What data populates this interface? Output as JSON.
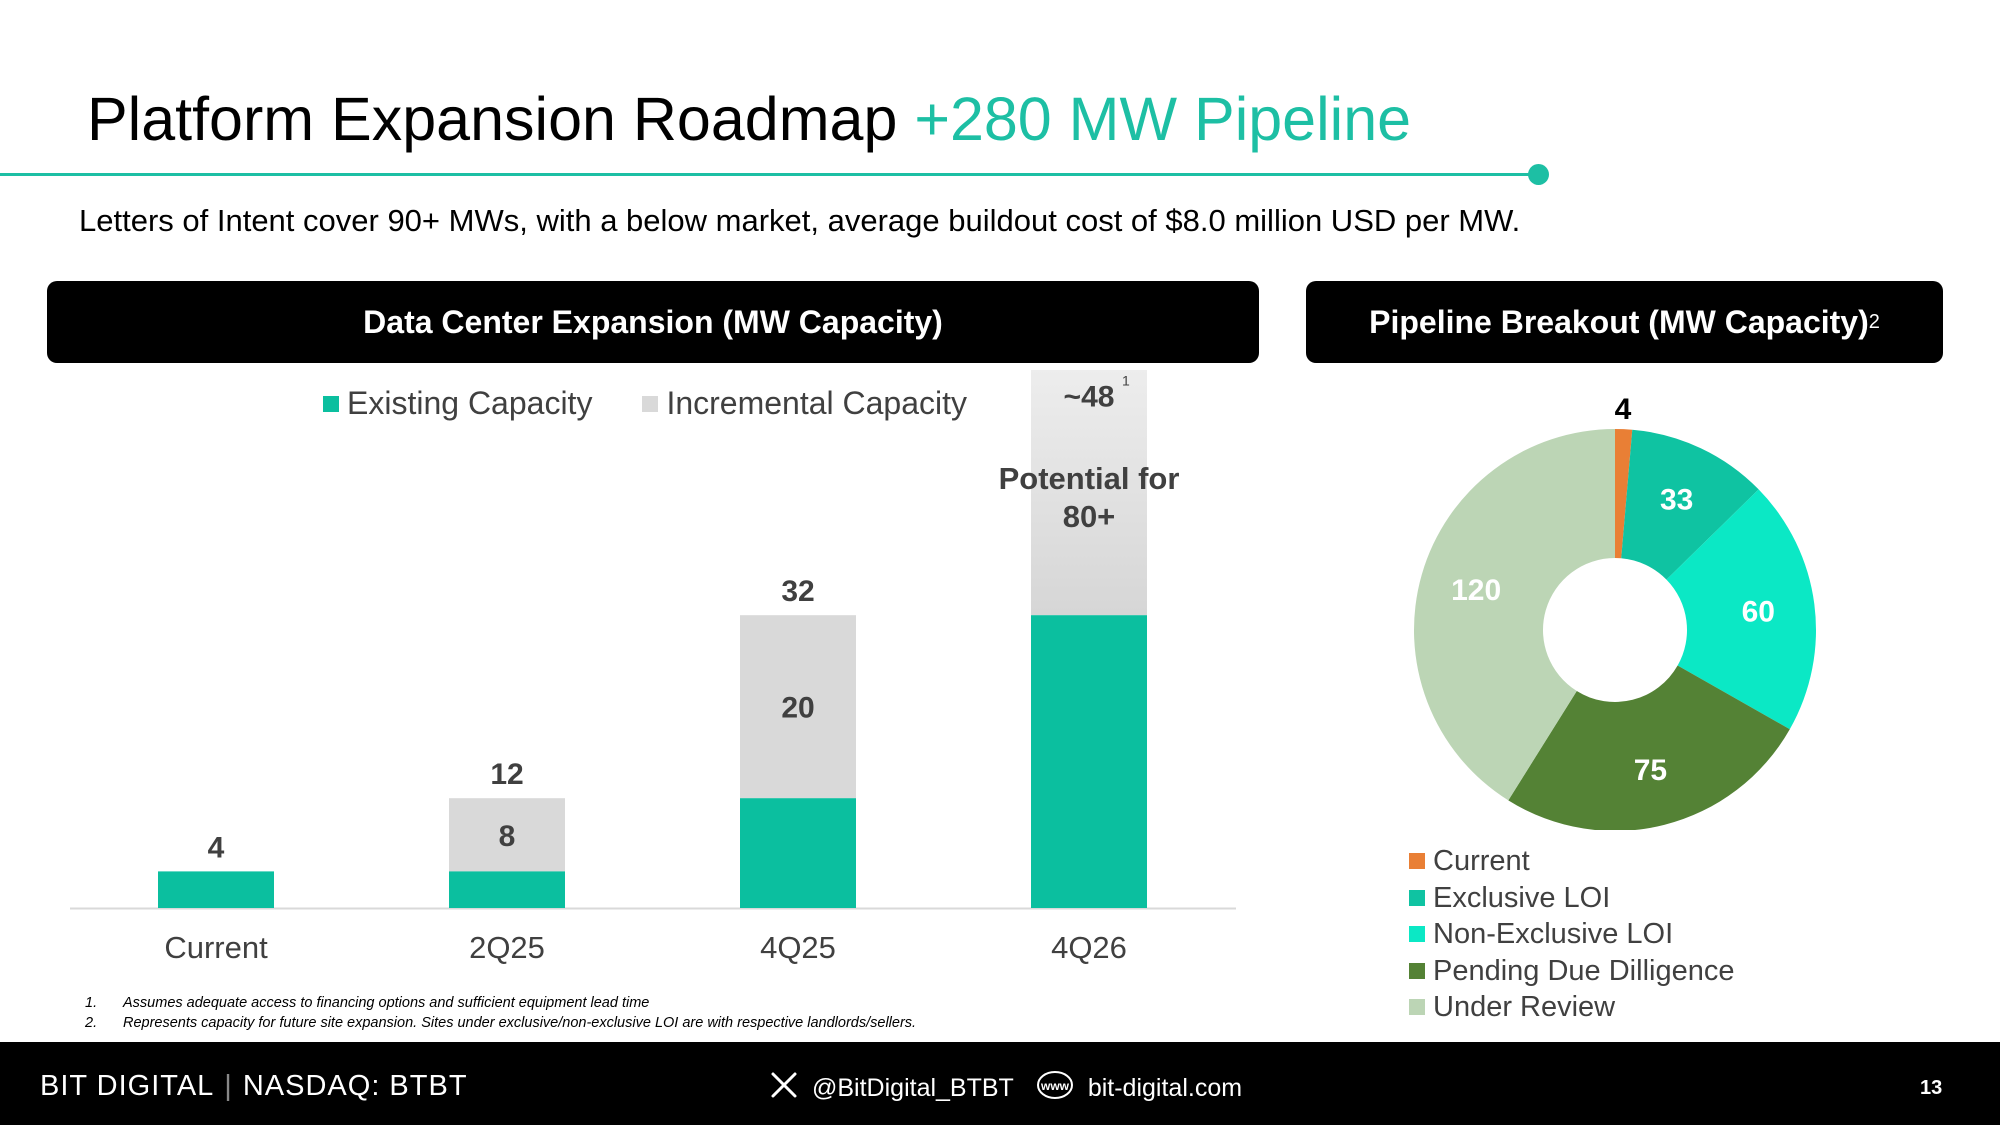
{
  "header": {
    "title_main": "Platform Expansion Roadmap",
    "title_accent": "+280 MW Pipeline",
    "subtitle": "Letters of Intent cover 90+ MWs, with a below market, average buildout cost of $8.0 million USD per MW."
  },
  "left_panel": {
    "title": "Data Center Expansion (MW Capacity)"
  },
  "right_panel": {
    "title": "Pipeline Breakout (MW Capacity)",
    "superscript": "2"
  },
  "colors": {
    "existing": "#0bbf9f",
    "incremental": "#d9d9d9",
    "current": "#e97f35",
    "exclusive": "#0fc3a2",
    "non_exclusive": "#0be8c5",
    "pending": "#548235",
    "review": "#bcd5b5"
  },
  "chart_data": [
    {
      "type": "bar",
      "stacked": true,
      "title": "Data Center Expansion (MW Capacity)",
      "categories": [
        "Current",
        "2Q25",
        "4Q25",
        "4Q26"
      ],
      "series": [
        {
          "name": "Existing Capacity",
          "values": [
            4,
            4,
            12,
            32
          ]
        },
        {
          "name": "Incremental Capacity",
          "values": [
            0,
            8,
            20,
            48
          ]
        }
      ],
      "incremental_labels": [
        "",
        "8",
        "20",
        "~48"
      ],
      "total_labels": [
        "4",
        "12",
        "32",
        ""
      ],
      "annotation": "Potential for 80+",
      "annotation_lines": [
        "Potential for",
        "80+"
      ],
      "footnote_ref": "1",
      "ylim": [
        0,
        85
      ],
      "legend": "top"
    },
    {
      "type": "pie",
      "donut": true,
      "title": "Pipeline Breakout (MW Capacity)",
      "categories": [
        "Current",
        "Exclusive LOI",
        "Non-Exclusive LOI",
        "Pending Due Dilligence",
        "Under Review"
      ],
      "values": [
        4,
        33,
        60,
        75,
        120
      ],
      "legend": "bottom"
    }
  ],
  "footnotes": [
    {
      "num": "1.",
      "text": "Assumes adequate access to financing options and sufficient equipment lead time"
    },
    {
      "num": "2.",
      "text": "Represents capacity for future site expansion. Sites under exclusive/non-exclusive LOI are with respective landlords/sellers."
    }
  ],
  "footer": {
    "brand": "BIT DIGITAL",
    "ticker": "NASDAQ: BTBT",
    "twitter": "@BitDigital_BTBT",
    "www_label": "www",
    "website": "bit-digital.com",
    "page": "13"
  }
}
